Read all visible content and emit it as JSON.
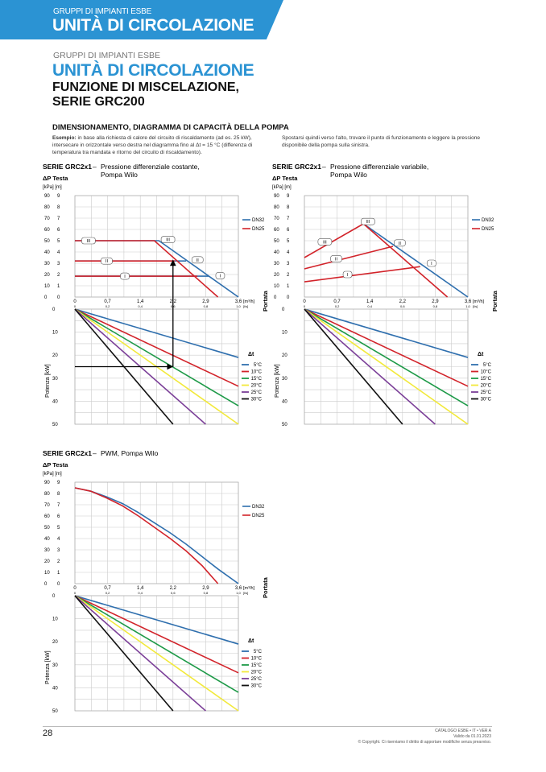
{
  "banner": {
    "category": "GRUPPI DI IMPIANTI ESBE",
    "title": "UNITÀ DI CIRCOLAZIONE"
  },
  "heading": {
    "category": "GRUPPI DI IMPIANTI ESBE",
    "title": "UNITÀ DI CIRCOLAZIONE",
    "subtitle_line1": "FUNZIONE DI MISCELAZIONE,",
    "subtitle_line2": "SERIE GRC200"
  },
  "section": {
    "title": "DIMENSIONAMENTO, DIAGRAMMA DI CAPACITÀ DELLA POMPA",
    "example_label": "Esempio:",
    "example_text": " in base alla richiesta di calore del circuito di riscaldamento (ad es. 25 kW), intersecare in orizzontale verso destra nel diagramma fino al Δt = 15 °C (differenza di temperatura tra mandata e ritorno del circuito di riscaldamento).",
    "right_text": "Spostarsi quindi verso l'alto, trovare il punto di funzionamento e leggere la pressione disponibile della pompa sulla sinistra."
  },
  "chart_data": [
    {
      "type": "line",
      "series_label": "SERIE GRC2x1",
      "title_line1": "Pressione differenziale costante,",
      "title_line2": "Pompa Wilo",
      "ylabel": "ΔP Testa",
      "yunits": "[kPa] [m]",
      "yticks_kpa": [
        "90",
        "80",
        "70",
        "60",
        "50",
        "40",
        "30",
        "20",
        "10",
        "0"
      ],
      "yticks_m": [
        "9",
        "8",
        "7",
        "6",
        "5",
        "4",
        "3",
        "2",
        "1",
        "0"
      ],
      "ylim": [
        0,
        90
      ],
      "xlim": [
        0,
        3.6
      ],
      "xticks": [
        "0",
        "0,7",
        "1,4",
        "2,2",
        "2,9",
        "3,6"
      ],
      "xunit": "[m³/h]",
      "x2ticks": [
        "0",
        "0,2",
        "0,4",
        "0,6",
        "0,8",
        "1,0"
      ],
      "x2unit": "[l/s]",
      "side_label": "Portata",
      "series": [
        {
          "name": "DN32",
          "color": "#2f6fae",
          "lines": [
            [
              [
                0,
                50
              ],
              [
                1.85,
                50
              ],
              [
                3.6,
                0
              ]
            ],
            [
              [
                0,
                32
              ],
              [
                2.45,
                32
              ]
            ],
            [
              [
                0,
                18.5
              ],
              [
                2.95,
                18.5
              ]
            ]
          ]
        },
        {
          "name": "DN25",
          "color": "#d2232a",
          "lines": [
            [
              [
                0,
                50
              ],
              [
                1.75,
                50
              ],
              [
                3.15,
                0
              ]
            ],
            [
              [
                0,
                32
              ],
              [
                2.2,
                32
              ]
            ],
            [
              [
                0,
                18.5
              ],
              [
                2.7,
                18.5
              ]
            ]
          ]
        }
      ],
      "speed_labels": [
        {
          "text": "III",
          "x": 0.3,
          "y": 50
        },
        {
          "text": "II",
          "x": 0.7,
          "y": 32
        },
        {
          "text": "I",
          "x": 1.1,
          "y": 18.5
        },
        {
          "text": "III",
          "x": 2.05,
          "y": 51
        },
        {
          "text": "II",
          "x": 2.7,
          "y": 33
        },
        {
          "text": "I",
          "x": 3.2,
          "y": 19
        }
      ],
      "power": {
        "ylabel": "Potenza [kW]",
        "ylim": [
          0,
          50
        ],
        "yticks": [
          "0",
          "10",
          "20",
          "30",
          "40",
          "50"
        ],
        "legend_title": "Δt",
        "series": [
          {
            "name": "5°C",
            "color": "#2f6fae",
            "kw_per_ls": 21
          },
          {
            "name": "10°C",
            "color": "#d2232a",
            "kw_per_ls": 33.5
          },
          {
            "name": "15°C",
            "color": "#1e9a48",
            "kw_per_ls": 42
          },
          {
            "name": "20°C",
            "color": "#f2e93c",
            "kw_per_ls": 50
          },
          {
            "name": "25°C",
            "color": "#7b3f98",
            "kw_per_ls": 62.5
          },
          {
            "name": "30°C",
            "color": "#111111",
            "kw_per_ls": 83.3
          }
        ]
      },
      "example_arrow": {
        "power_kw": 25,
        "flow_ls": 0.6,
        "pressure_kpa": 33
      }
    },
    {
      "type": "line",
      "series_label": "SERIE GRC2x1",
      "title_line1": "Pressione differenziale variabile,",
      "title_line2": "Pompa Wilo",
      "ylabel": "ΔP Testa",
      "yunits": "[kPa] [m]",
      "yticks_kpa": [
        "90",
        "80",
        "70",
        "60",
        "50",
        "40",
        "30",
        "20",
        "10",
        "0"
      ],
      "yticks_m": [
        "9",
        "8",
        "7",
        "6",
        "5",
        "4",
        "3",
        "2",
        "1",
        "0"
      ],
      "ylim": [
        0,
        90
      ],
      "xlim": [
        0,
        3.6
      ],
      "xticks": [
        "0",
        "0,7",
        "1,4",
        "2,2",
        "2,9",
        "3,6"
      ],
      "xunit": "[m³/h]",
      "x2ticks": [
        "0",
        "0,2",
        "0,4",
        "0,6",
        "0,8",
        "1,0"
      ],
      "x2unit": "[l/s]",
      "side_label": "Portata",
      "series": [
        {
          "name": "DN32",
          "color": "#2f6fae",
          "lines": [
            [
              [
                1.3,
                65
              ],
              [
                3.6,
                0
              ]
            ]
          ]
        },
        {
          "name": "DN25",
          "color": "#d2232a",
          "lines": [
            [
              [
                0,
                35
              ],
              [
                1.3,
                65
              ],
              [
                3.15,
                0
              ]
            ],
            [
              [
                0,
                25
              ],
              [
                1.95,
                45
              ]
            ],
            [
              [
                0,
                13.5
              ],
              [
                2.55,
                27
              ]
            ]
          ]
        }
      ],
      "speed_labels": [
        {
          "text": "III",
          "x": 1.4,
          "y": 67
        },
        {
          "text": "III",
          "x": 0.45,
          "y": 49
        },
        {
          "text": "II",
          "x": 2.1,
          "y": 48
        },
        {
          "text": "II",
          "x": 0.7,
          "y": 34
        },
        {
          "text": "I",
          "x": 2.8,
          "y": 30
        },
        {
          "text": "I",
          "x": 0.95,
          "y": 20
        }
      ],
      "power": {
        "ylabel": "Potenza [kW]",
        "ylim": [
          0,
          50
        ],
        "yticks": [
          "0",
          "10",
          "20",
          "30",
          "40",
          "50"
        ],
        "legend_title": "Δt",
        "series": [
          {
            "name": "5°C",
            "color": "#2f6fae",
            "kw_per_ls": 21
          },
          {
            "name": "10°C",
            "color": "#d2232a",
            "kw_per_ls": 33.5
          },
          {
            "name": "15°C",
            "color": "#1e9a48",
            "kw_per_ls": 42
          },
          {
            "name": "20°C",
            "color": "#f2e93c",
            "kw_per_ls": 50
          },
          {
            "name": "25°C",
            "color": "#7b3f98",
            "kw_per_ls": 62.5
          },
          {
            "name": "30°C",
            "color": "#111111",
            "kw_per_ls": 83.3
          }
        ]
      }
    },
    {
      "type": "line",
      "series_label": "SERIE GRC2x1",
      "title_line1": "PWM, Pompa Wilo",
      "title_line2": "",
      "ylabel": "ΔP Testa",
      "yunits": "[kPa] [m]",
      "yticks_kpa": [
        "90",
        "80",
        "70",
        "60",
        "50",
        "40",
        "30",
        "20",
        "10",
        "0"
      ],
      "yticks_m": [
        "9",
        "8",
        "7",
        "6",
        "5",
        "4",
        "3",
        "2",
        "1",
        "0"
      ],
      "ylim": [
        0,
        90
      ],
      "xlim": [
        0,
        3.6
      ],
      "xticks": [
        "0",
        "0,7",
        "1,4",
        "2,2",
        "2,9",
        "3,6"
      ],
      "xunit": "[m³/h]",
      "x2ticks": [
        "0",
        "0,2",
        "0,4",
        "0,6",
        "0,8",
        "1,0"
      ],
      "x2unit": "[l/s]",
      "side_label": "Portata",
      "series": [
        {
          "name": "DN32",
          "color": "#2f6fae",
          "lines": [
            [
              [
                0,
                85
              ],
              [
                0.35,
                82
              ],
              [
                0.7,
                77
              ],
              [
                1.05,
                71
              ],
              [
                1.4,
                63
              ],
              [
                1.75,
                54
              ],
              [
                2.1,
                45
              ],
              [
                2.45,
                35
              ],
              [
                2.8,
                24
              ],
              [
                3.15,
                13
              ],
              [
                3.6,
                0
              ]
            ]
          ]
        },
        {
          "name": "DN25",
          "color": "#d2232a",
          "lines": [
            [
              [
                0,
                85
              ],
              [
                0.35,
                82
              ],
              [
                0.7,
                76
              ],
              [
                1.05,
                69
              ],
              [
                1.4,
                60
              ],
              [
                1.75,
                50
              ],
              [
                2.1,
                40
              ],
              [
                2.45,
                29
              ],
              [
                2.8,
                16
              ],
              [
                3.15,
                0
              ]
            ]
          ]
        }
      ],
      "speed_labels": [],
      "power": {
        "ylabel": "Potenza [kW]",
        "ylim": [
          0,
          50
        ],
        "yticks": [
          "0",
          "10",
          "20",
          "30",
          "40",
          "50"
        ],
        "legend_title": "Δt",
        "series": [
          {
            "name": "5°C",
            "color": "#2f6fae",
            "kw_per_ls": 21
          },
          {
            "name": "10°C",
            "color": "#d2232a",
            "kw_per_ls": 33.5
          },
          {
            "name": "15°C",
            "color": "#1e9a48",
            "kw_per_ls": 42
          },
          {
            "name": "20°C",
            "color": "#f2e93c",
            "kw_per_ls": 50
          },
          {
            "name": "25°C",
            "color": "#7b3f98",
            "kw_per_ls": 62.5
          },
          {
            "name": "30°C",
            "color": "#111111",
            "kw_per_ls": 83.3
          }
        ]
      }
    }
  ],
  "footer": {
    "page": "28",
    "catalog": "CATALOGO ESBE • IT • VER A",
    "valid": "Valido da 01.01.2023",
    "copyright": "© Copyright. Ci riserviamo il diritto di apportare modifiche senza preavviso."
  }
}
